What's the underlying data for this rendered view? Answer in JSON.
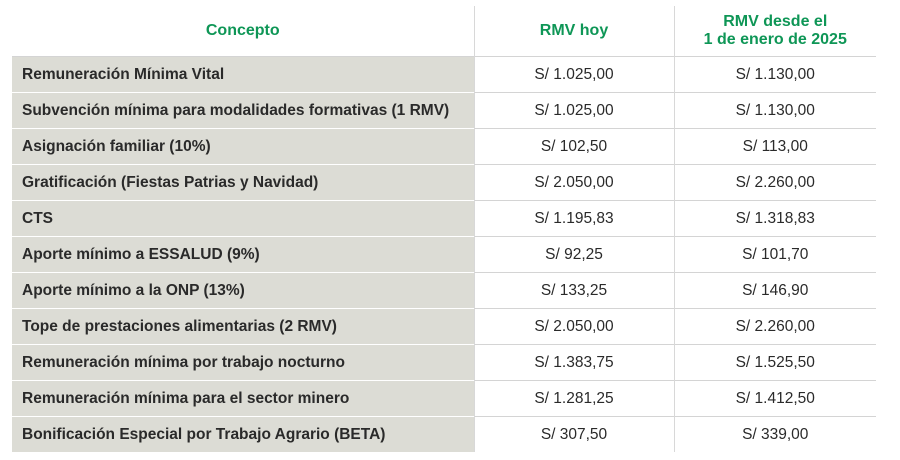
{
  "table": {
    "header": [
      "Concepto",
      "RMV hoy",
      [
        "RMV desde el",
        "1 de enero de 2025"
      ]
    ],
    "rows": [
      [
        "Remuneración Mínima Vital",
        "S/ 1.025,00",
        "S/ 1.130,00"
      ],
      [
        "Subvención mínima para modalidades formativas (1 RMV)",
        "S/ 1.025,00",
        "S/ 1.130,00"
      ],
      [
        "Asignación familiar (10%)",
        "S/ 102,50",
        "S/ 113,00"
      ],
      [
        "Gratificación (Fiestas Patrias y Navidad)",
        "S/ 2.050,00",
        "S/ 2.260,00"
      ],
      [
        "CTS",
        "S/ 1.195,83",
        "S/ 1.318,83"
      ],
      [
        "Aporte mínimo a ESSALUD (9%)",
        "S/ 92,25",
        "S/ 101,70"
      ],
      [
        "Aporte mínimo a la ONP (13%)",
        "S/ 133,25",
        "S/ 146,90"
      ],
      [
        "Tope de prestaciones alimentarias (2 RMV)",
        "S/ 2.050,00",
        "S/ 2.260,00"
      ],
      [
        "Remuneración mínima por trabajo nocturno",
        "S/ 1.383,75",
        "S/ 1.525,50"
      ],
      [
        "Remuneración mínima para el sector minero",
        "S/ 1.281,25",
        "S/ 1.412,50"
      ],
      [
        "Bonificación Especial por Trabajo Agrario (BETA)",
        "S/ 307,50",
        "S/ 339,00"
      ]
    ]
  }
}
